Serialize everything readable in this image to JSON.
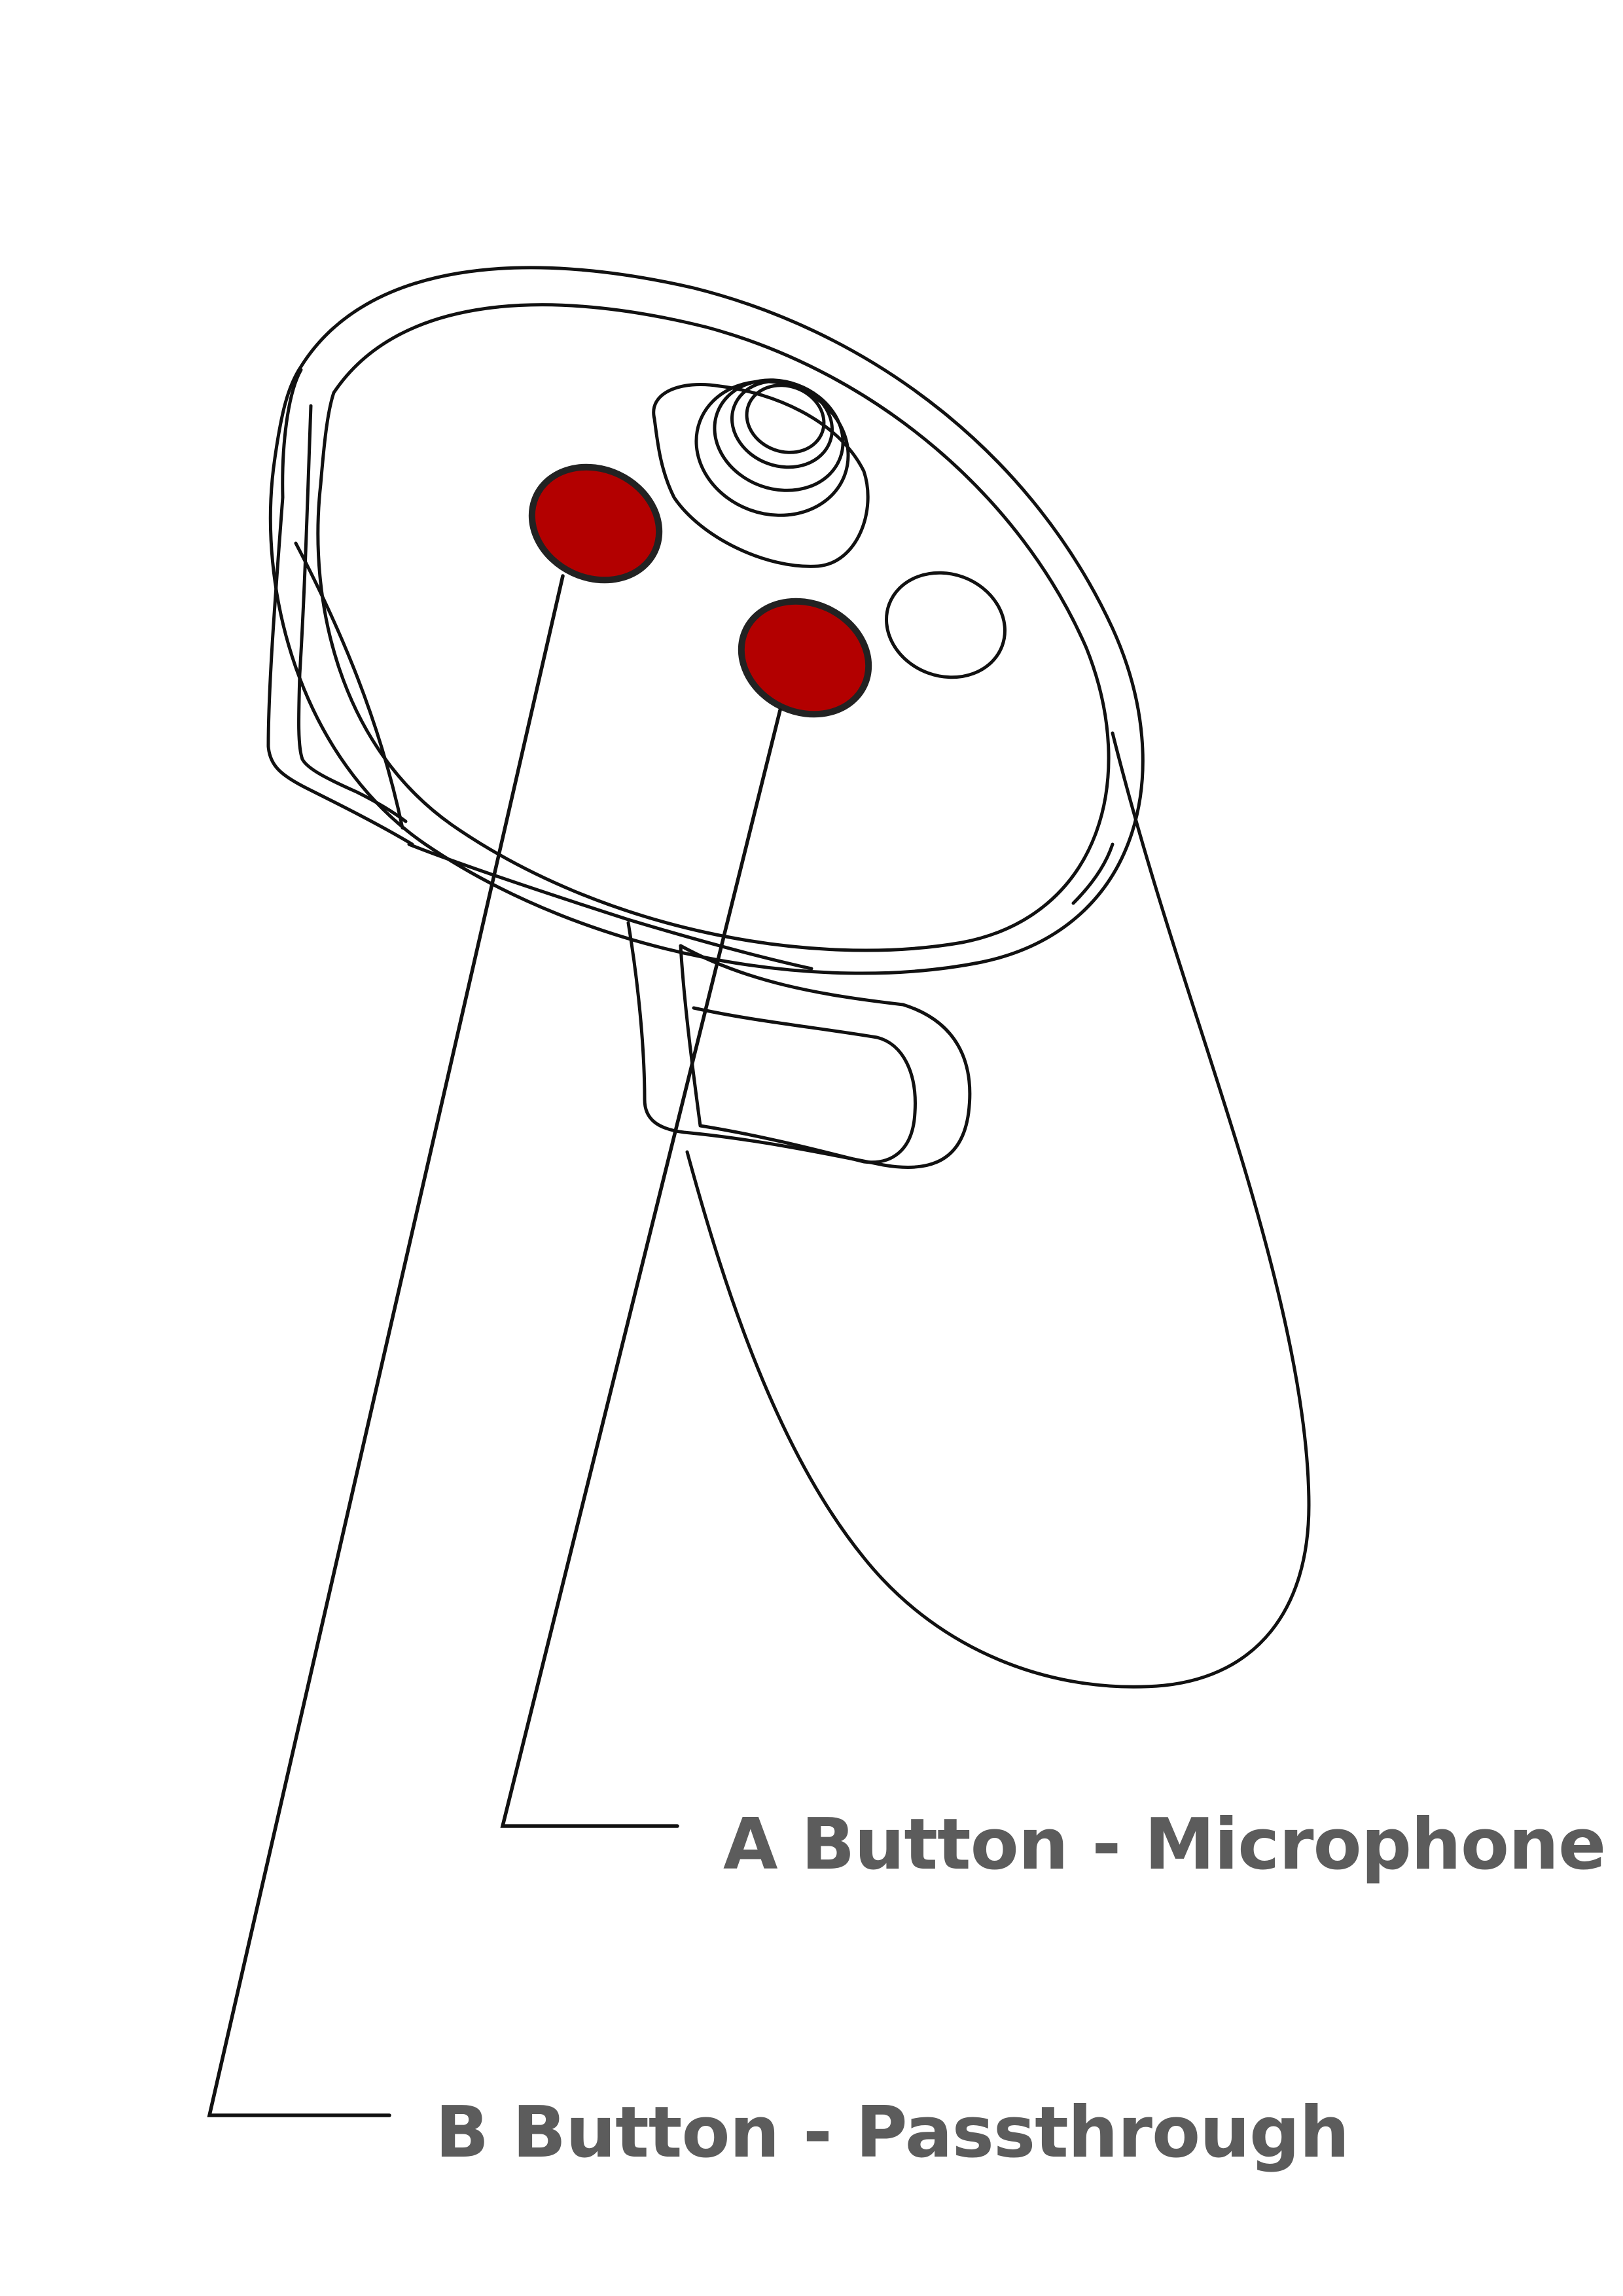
{
  "callouts": {
    "a_button": {
      "label": "A Button - Microphone",
      "highlight_color": "#b30000"
    },
    "b_button": {
      "label": "B Button - Passthrough",
      "highlight_color": "#b30000"
    }
  },
  "colors": {
    "outline": "#111111",
    "label_text": "#5c5c5c",
    "background": "#ffffff"
  }
}
